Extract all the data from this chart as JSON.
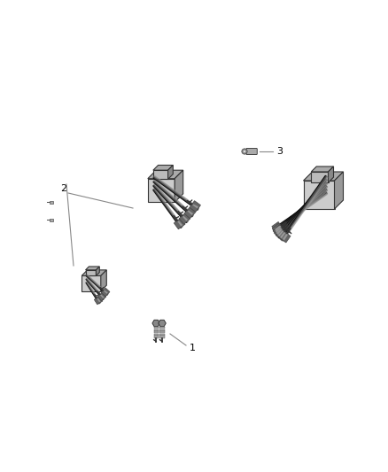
{
  "background_color": "#ffffff",
  "fig_width": 4.38,
  "fig_height": 5.33,
  "dpi": 100,
  "label_1": "1",
  "label_2": "2",
  "label_3": "3",
  "lc": "#888888",
  "cc": "#333333",
  "coil_body_dark": "#555555",
  "coil_body_mid": "#888888",
  "coil_body_light": "#bbbbbb",
  "wire_dark": "#222222",
  "wire_mid": "#555555",
  "wire_light": "#999999",
  "connector_dark": "#333333",
  "connector_mid": "#666666",
  "connector_light": "#aaaaaa"
}
